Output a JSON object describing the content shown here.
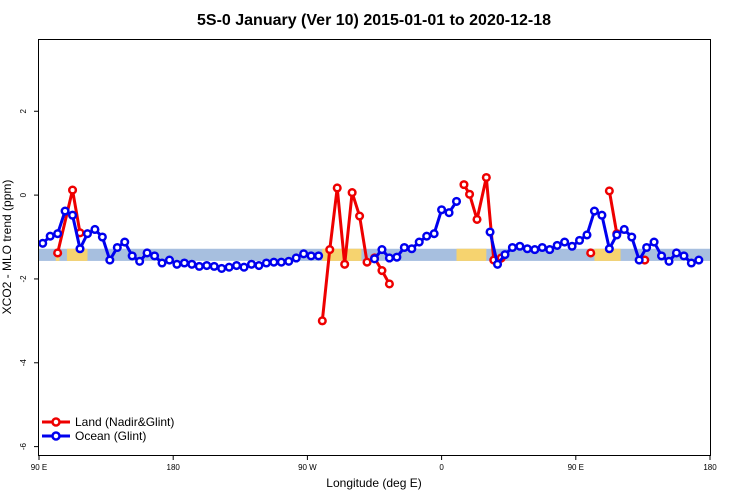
{
  "chart_data": {
    "type": "line",
    "title": "5S-0 January (Ver 10)   2015-01-01 to 2020-12-18",
    "xlabel": "Longitude (deg E)",
    "ylabel": "XCO2 - MLO trend (ppm)",
    "xlim": [
      90,
      450
    ],
    "ylim": [
      -6.2,
      3.7
    ],
    "x_ticks": [
      {
        "value": 90,
        "label": "90 E"
      },
      {
        "value": 162,
        "label": "180"
      },
      {
        "value": 234,
        "label": "90 W"
      },
      {
        "value": 306,
        "label": "0"
      },
      {
        "value": 378,
        "label": "90 E"
      },
      {
        "value": 450,
        "label": "180"
      }
    ],
    "y_ticks": [
      {
        "value": -6,
        "label": "-6"
      },
      {
        "value": -4,
        "label": "-4"
      },
      {
        "value": -2,
        "label": "-2"
      },
      {
        "value": 0,
        "label": "0"
      },
      {
        "value": 2,
        "label": "2"
      }
    ],
    "legend_position": "bottom-left",
    "background_band": {
      "y_min": -1.57,
      "y_max": -1.28,
      "color": "#a7bfdf"
    },
    "land_band_segments": [
      {
        "x_min": 99,
        "x_max": 101,
        "color": "#f6d36f"
      },
      {
        "x_min": 105,
        "x_max": 116,
        "color": "#f6d36f"
      },
      {
        "x_min": 242,
        "x_max": 263,
        "color": "#f6d36f"
      },
      {
        "x_min": 314,
        "x_max": 330,
        "color": "#f6d36f"
      },
      {
        "x_min": 388,
        "x_max": 402,
        "color": "#f6d36f"
      }
    ],
    "series": [
      {
        "name": "Land (Nadir&Glint)",
        "color": "#ee0000",
        "segments": [
          [
            [
              100,
              -1.38
            ],
            [
              108,
              0.12
            ],
            [
              112,
              -0.9
            ]
          ],
          [
            [
              242,
              -3.0
            ],
            [
              246,
              -1.3
            ],
            [
              250,
              0.17
            ],
            [
              254,
              -1.65
            ],
            [
              258,
              0.06
            ],
            [
              262,
              -0.5
            ],
            [
              266,
              -1.6
            ],
            [
              270,
              -1.5
            ],
            [
              274,
              -1.8
            ],
            [
              278,
              -2.12
            ]
          ],
          [
            [
              318,
              0.25
            ],
            [
              321,
              0.02
            ],
            [
              325,
              -0.58
            ],
            [
              330,
              0.42
            ],
            [
              334,
              -1.55
            ],
            [
              338,
              -1.5
            ]
          ],
          [
            [
              386,
              -1.38
            ]
          ],
          [
            [
              396,
              0.1
            ],
            [
              400,
              -0.92
            ]
          ],
          [
            [
              415,
              -1.55
            ]
          ]
        ]
      },
      {
        "name": "Ocean (Glint)",
        "color": "#0000ee",
        "segments": [
          [
            [
              92,
              -1.15
            ],
            [
              96,
              -0.98
            ],
            [
              100,
              -0.92
            ],
            [
              104,
              -0.38
            ],
            [
              108,
              -0.48
            ],
            [
              112,
              -1.28
            ],
            [
              116,
              -0.92
            ],
            [
              120,
              -0.82
            ],
            [
              124,
              -1.0
            ],
            [
              128,
              -1.55
            ],
            [
              132,
              -1.25
            ],
            [
              136,
              -1.12
            ],
            [
              140,
              -1.45
            ],
            [
              144,
              -1.58
            ],
            [
              148,
              -1.38
            ],
            [
              152,
              -1.45
            ],
            [
              156,
              -1.62
            ],
            [
              160,
              -1.55
            ],
            [
              164,
              -1.65
            ],
            [
              168,
              -1.62
            ],
            [
              172,
              -1.65
            ],
            [
              176,
              -1.7
            ],
            [
              180,
              -1.68
            ],
            [
              184,
              -1.7
            ],
            [
              188,
              -1.75
            ],
            [
              192,
              -1.72
            ],
            [
              196,
              -1.68
            ],
            [
              200,
              -1.72
            ],
            [
              204,
              -1.65
            ],
            [
              208,
              -1.68
            ],
            [
              212,
              -1.62
            ],
            [
              216,
              -1.6
            ],
            [
              220,
              -1.6
            ],
            [
              224,
              -1.58
            ],
            [
              228,
              -1.5
            ],
            [
              232,
              -1.4
            ],
            [
              236,
              -1.45
            ],
            [
              240,
              -1.45
            ]
          ],
          [
            [
              270,
              -1.52
            ],
            [
              274,
              -1.3
            ],
            [
              278,
              -1.5
            ],
            [
              282,
              -1.48
            ],
            [
              286,
              -1.25
            ],
            [
              290,
              -1.28
            ],
            [
              294,
              -1.12
            ],
            [
              298,
              -0.98
            ],
            [
              302,
              -0.92
            ],
            [
              306,
              -0.35
            ],
            [
              310,
              -0.42
            ],
            [
              314,
              -0.15
            ]
          ],
          [
            [
              332,
              -0.88
            ],
            [
              336,
              -1.65
            ],
            [
              340,
              -1.42
            ],
            [
              344,
              -1.25
            ],
            [
              348,
              -1.22
            ],
            [
              352,
              -1.28
            ],
            [
              356,
              -1.3
            ],
            [
              360,
              -1.25
            ],
            [
              364,
              -1.3
            ],
            [
              368,
              -1.2
            ],
            [
              372,
              -1.12
            ],
            [
              376,
              -1.22
            ],
            [
              380,
              -1.08
            ],
            [
              384,
              -0.95
            ],
            [
              388,
              -0.38
            ],
            [
              392,
              -0.48
            ],
            [
              396,
              -1.28
            ],
            [
              400,
              -0.95
            ],
            [
              404,
              -0.82
            ],
            [
              408,
              -1.0
            ],
            [
              412,
              -1.55
            ],
            [
              416,
              -1.25
            ],
            [
              420,
              -1.12
            ],
            [
              424,
              -1.45
            ],
            [
              428,
              -1.58
            ],
            [
              432,
              -1.38
            ],
            [
              436,
              -1.45
            ],
            [
              440,
              -1.62
            ],
            [
              444,
              -1.55
            ]
          ]
        ]
      }
    ]
  }
}
